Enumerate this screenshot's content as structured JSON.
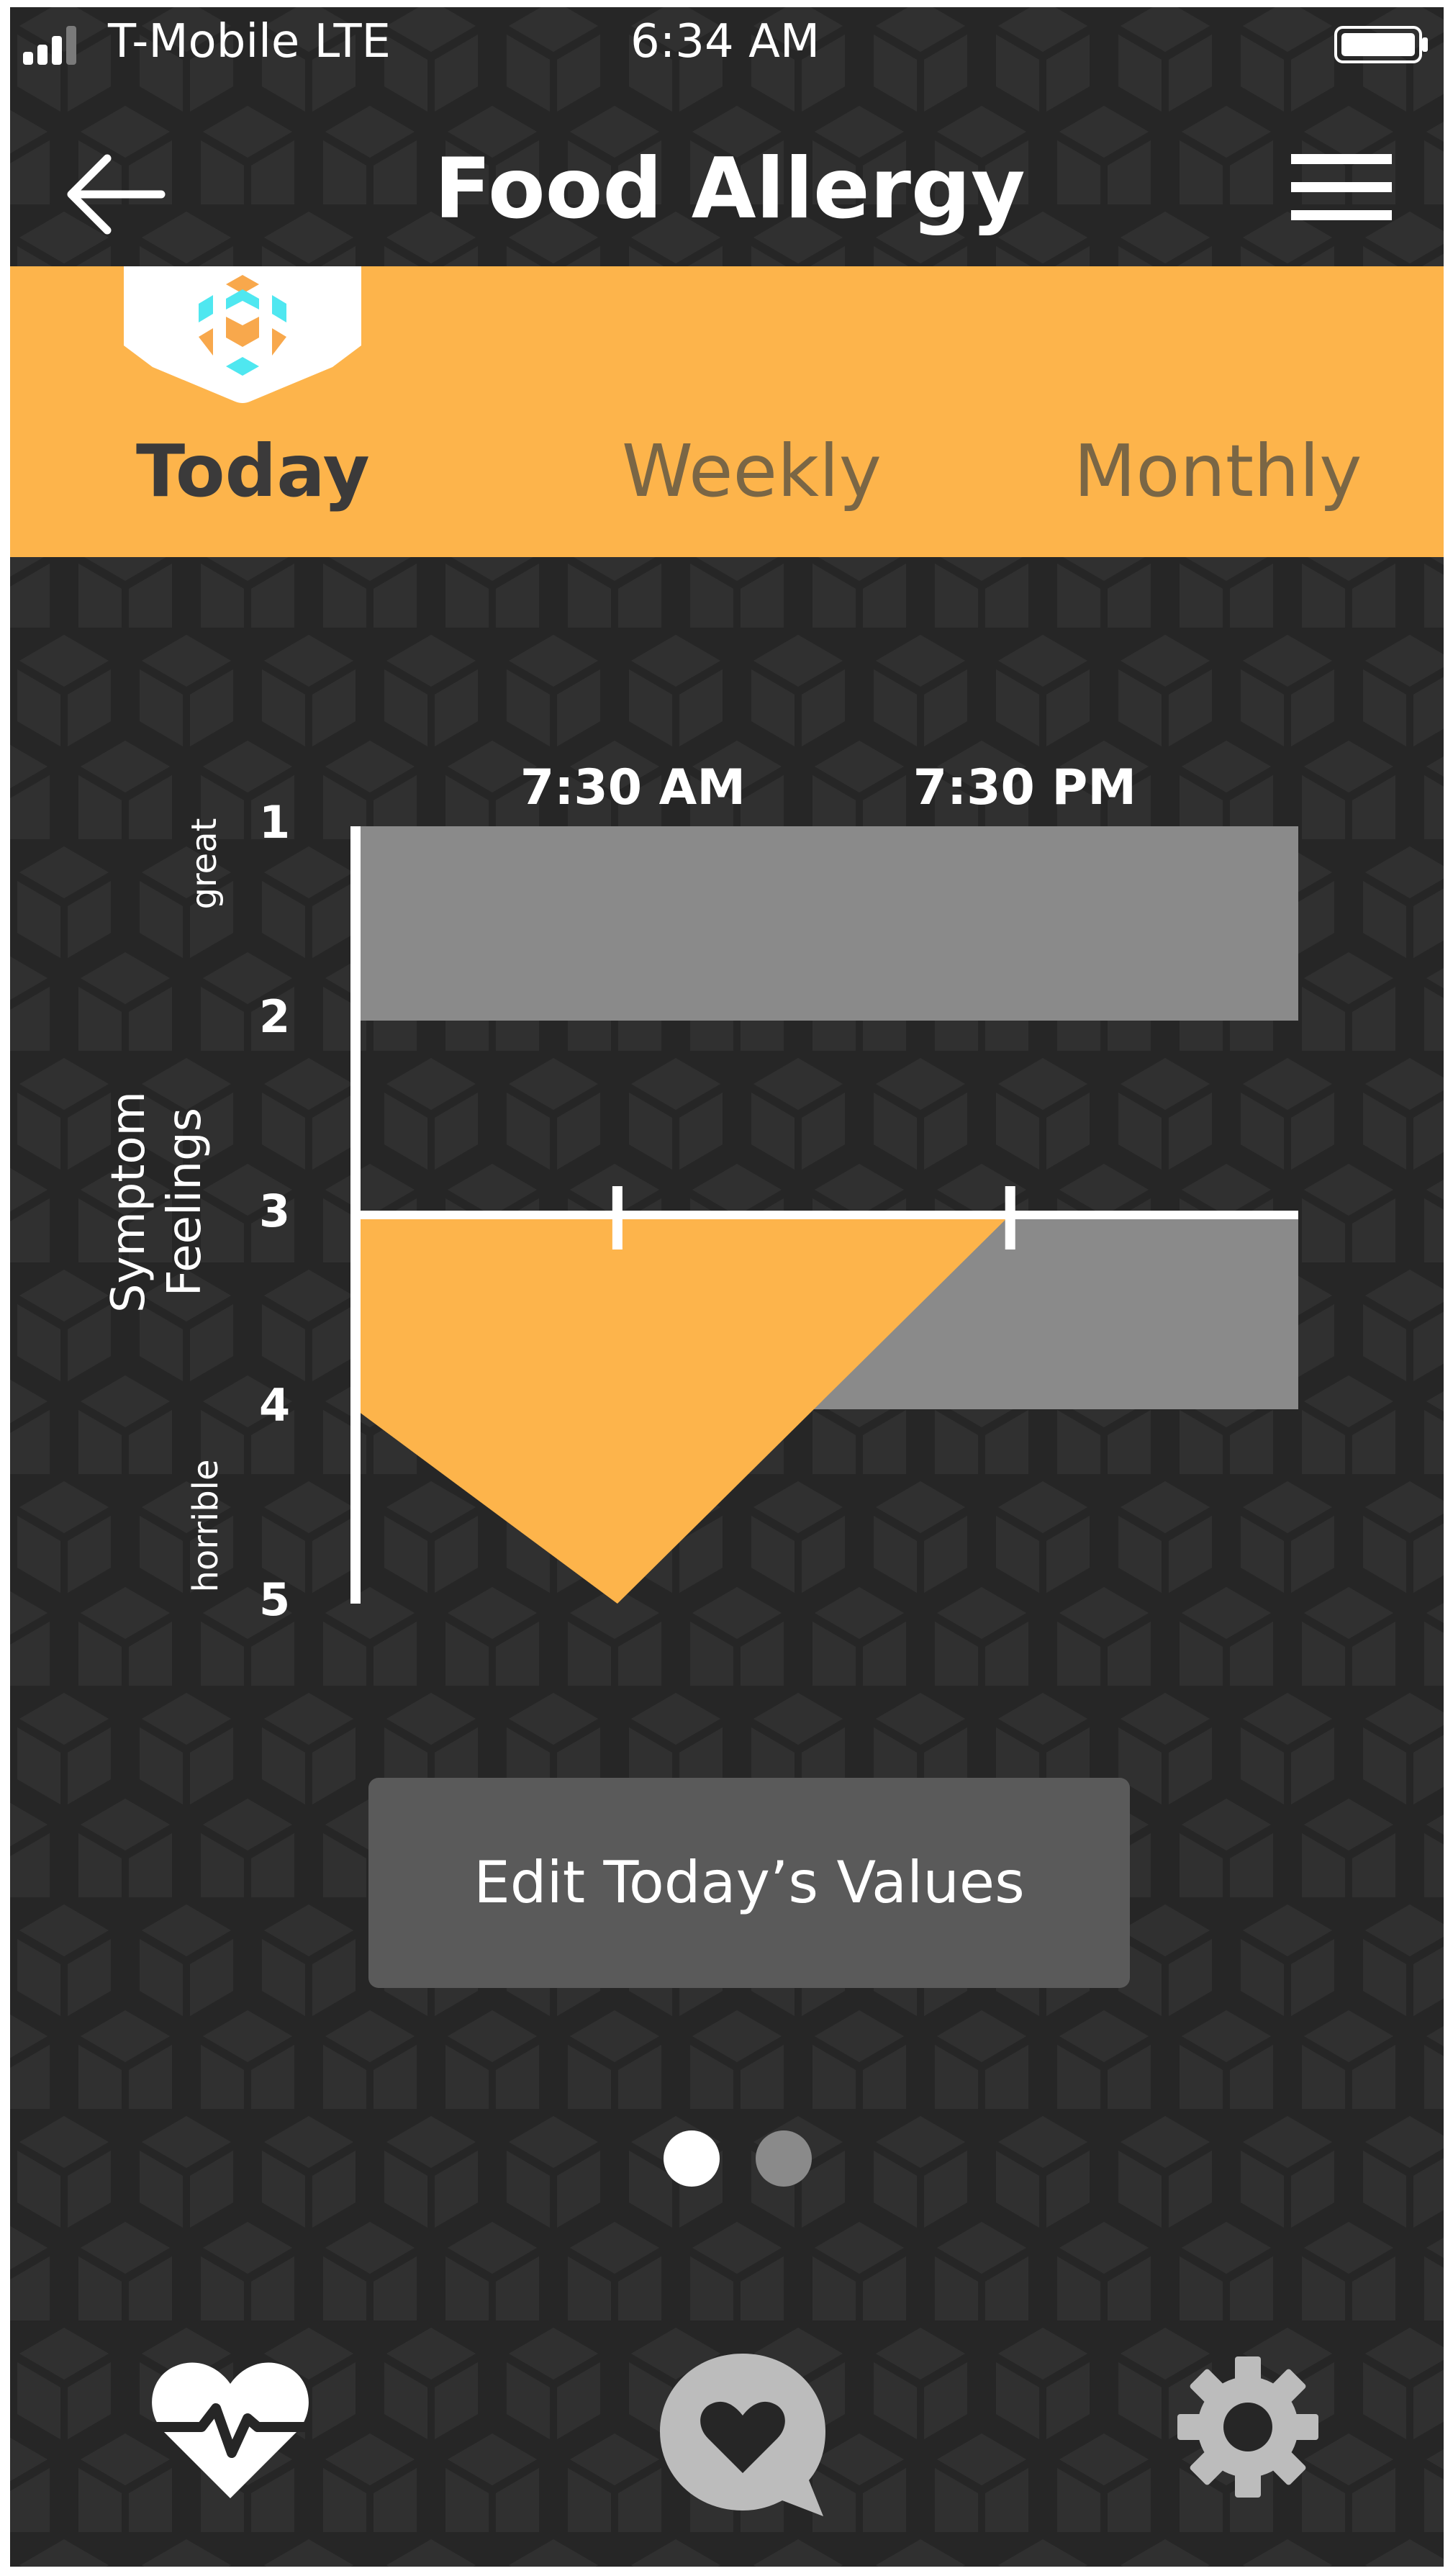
{
  "status_bar": {
    "carrier": "T-Mobile  LTE",
    "time": "6:34 AM"
  },
  "header": {
    "title": "Food Allergy"
  },
  "tabs": [
    {
      "label": "Today",
      "selected": true
    },
    {
      "label": "Weekly",
      "selected": false
    },
    {
      "label": "Monthly",
      "selected": false
    }
  ],
  "chart_data": {
    "type": "area",
    "x_ticks": [
      "7:30 AM",
      "7:30 PM"
    ],
    "y_ticks": [
      "1",
      "2",
      "3",
      "4",
      "5"
    ],
    "y_axis_label": "Symptom Feelings",
    "y_axis_label_lines": [
      "Symptom",
      "Feelings"
    ],
    "y_top_label": "great",
    "y_bottom_label": "horrible",
    "reference_bands": [
      {
        "y_from": 1,
        "y_to": 2,
        "color": "#8a8a8a"
      },
      {
        "y_from": 3,
        "y_to": 4,
        "color": "#8a8a8a"
      }
    ],
    "baseline": 3,
    "series": [
      {
        "color": "#fdb44b",
        "points": [
          [
            0,
            4
          ],
          [
            1,
            5
          ],
          [
            2.5,
            3
          ]
        ]
      }
    ],
    "x_tick_positions": [
      1,
      2.5
    ],
    "x_range": [
      0,
      3.6
    ],
    "y_range": [
      1,
      5
    ]
  },
  "actions": {
    "edit_label": "Edit Today’s Values"
  },
  "pager": {
    "pages": 2,
    "current": 1
  },
  "bottom_nav": [
    {
      "icon": "heart-pulse-icon"
    },
    {
      "icon": "heart-chat-icon"
    },
    {
      "icon": "gear-icon"
    }
  ],
  "colors": {
    "accent": "#fdb44b",
    "background": "#262626",
    "band": "#8a8a8a",
    "logo_cyan": "#4fe7f0",
    "logo_orange": "#f8a84c"
  }
}
